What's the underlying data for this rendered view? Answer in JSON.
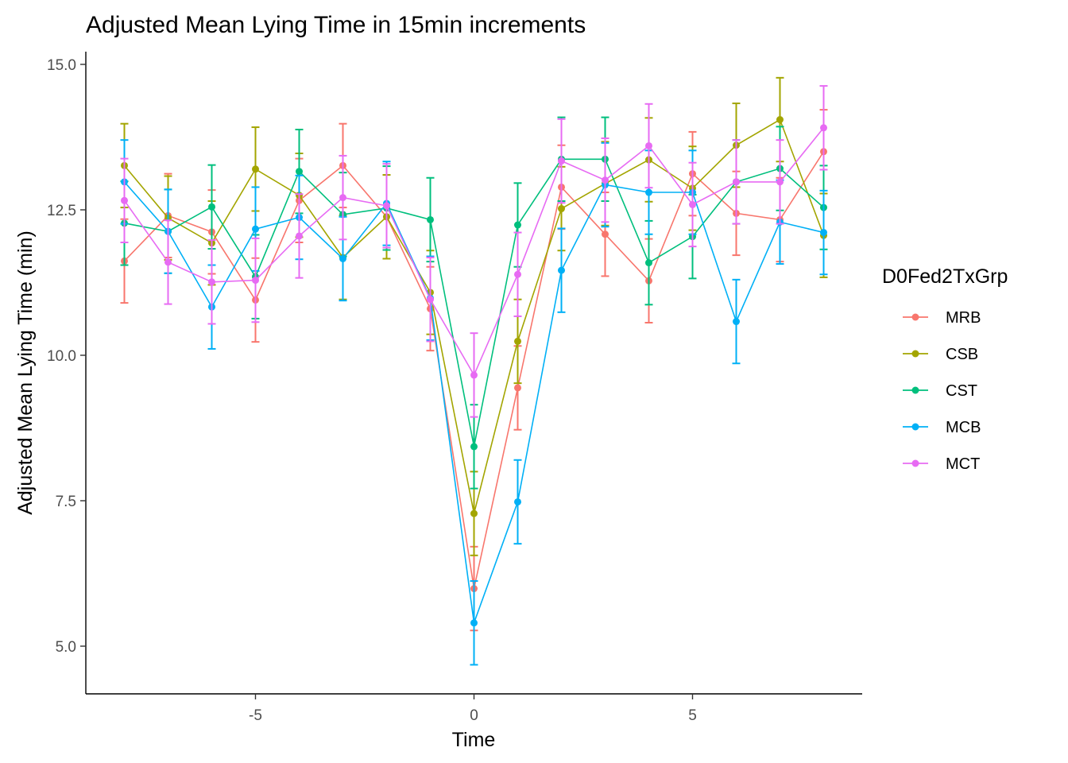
{
  "chart_data": {
    "type": "line",
    "title": "Adjusted Mean Lying Time in 15min increments",
    "xlabel": "Time",
    "ylabel": "Adjusted Mean Lying Time (min)",
    "xlim": [
      -8.8,
      8.8
    ],
    "ylim": [
      4.2,
      15.2
    ],
    "xticks": [
      -5,
      0,
      5
    ],
    "xtick_labels": [
      "-5",
      "0",
      "5"
    ],
    "yticks": [
      5.0,
      7.5,
      10.0,
      12.5,
      15.0
    ],
    "ytick_labels": [
      "5.0",
      "7.5",
      "10.0",
      "12.5",
      "15.0"
    ],
    "x": [
      -8,
      -7,
      -6,
      -5,
      -4,
      -3,
      -2,
      -1,
      0,
      1,
      2,
      3,
      4,
      5,
      6,
      7,
      8
    ],
    "grid": false,
    "legend_position": "right",
    "legend_title": "D0Fed2TxGrp",
    "error_half_width": 0.72,
    "series": [
      {
        "name": "MRB",
        "color": "#F8766D",
        "values": [
          11.62,
          12.4,
          12.12,
          10.95,
          12.66,
          13.26,
          12.38,
          10.8,
          5.99,
          9.44,
          12.89,
          12.08,
          11.28,
          13.12,
          12.44,
          12.33,
          13.5
        ]
      },
      {
        "name": "CSB",
        "color": "#A3A500",
        "values": [
          13.26,
          12.36,
          11.93,
          13.2,
          12.75,
          11.68,
          12.38,
          11.08,
          7.28,
          10.24,
          12.52,
          12.95,
          13.36,
          12.87,
          13.61,
          14.05,
          12.06
        ]
      },
      {
        "name": "CST",
        "color": "#00BF7D",
        "values": [
          12.27,
          12.13,
          12.55,
          11.35,
          13.16,
          12.42,
          12.53,
          12.33,
          8.43,
          12.24,
          13.37,
          13.37,
          11.59,
          12.04,
          12.98,
          13.21,
          12.54
        ]
      },
      {
        "name": "MCB",
        "color": "#00B0F6",
        "values": [
          12.98,
          12.13,
          10.83,
          12.17,
          12.37,
          11.66,
          12.61,
          10.98,
          5.4,
          7.48,
          11.46,
          12.93,
          12.8,
          12.8,
          10.58,
          12.29,
          12.11
        ]
      },
      {
        "name": "MCT",
        "color": "#E76BF3",
        "values": [
          12.66,
          11.6,
          11.26,
          11.29,
          12.05,
          12.71,
          12.57,
          10.96,
          9.66,
          11.39,
          13.34,
          13.01,
          13.6,
          12.59,
          12.98,
          12.98,
          13.91
        ]
      }
    ]
  }
}
